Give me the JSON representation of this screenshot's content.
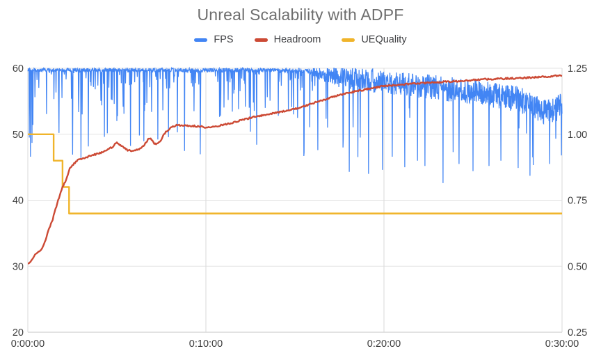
{
  "chart_data": {
    "type": "line",
    "title": "Unreal Scalability with ADPF",
    "legend_position": "top",
    "grid": true,
    "x_axis": {
      "ticks": [
        "0:00:00",
        "0:10:00",
        "0:20:00",
        "0:30:00"
      ],
      "tick_seconds": [
        0,
        600,
        1200,
        1800
      ],
      "range_seconds": [
        0,
        1800
      ]
    },
    "y_axis_left": {
      "ticks": [
        "60",
        "50",
        "40",
        "30",
        "20"
      ],
      "tick_values": [
        60,
        50,
        40,
        30,
        20
      ],
      "range": [
        20,
        60
      ],
      "series": [
        "FPS"
      ]
    },
    "y_axis_right": {
      "ticks": [
        "1.25",
        "1.00",
        "0.75",
        "0.50",
        "0.25"
      ],
      "tick_values": [
        1.25,
        1.0,
        0.75,
        0.5,
        0.25
      ],
      "range": [
        0.25,
        1.25
      ],
      "series": [
        "Headroom",
        "UEQuality"
      ]
    },
    "series": [
      {
        "name": "FPS",
        "axis": "left",
        "color": "#4285f4",
        "style": "noisy-line",
        "units": "frames per second, sampled every second, capped at 60",
        "cap": 60,
        "floor": 42,
        "mean_keypoints": [
          [
            0,
            59.75
          ],
          [
            900,
            59.7
          ],
          [
            960,
            59.5
          ],
          [
            1000,
            59.0
          ],
          [
            1060,
            58.6
          ],
          [
            1140,
            58.2
          ],
          [
            1250,
            57.7
          ],
          [
            1350,
            57.2
          ],
          [
            1450,
            56.7
          ],
          [
            1550,
            56.1
          ],
          [
            1650,
            55.3
          ],
          [
            1700,
            54.5
          ],
          [
            1735,
            53.6
          ],
          [
            1760,
            53.2
          ],
          [
            1780,
            53.9
          ],
          [
            1800,
            54.3
          ]
        ],
        "jitter_keypoints": [
          [
            0,
            0.28
          ],
          [
            940,
            0.35
          ],
          [
            975,
            0.8
          ],
          [
            1020,
            1.4
          ],
          [
            1100,
            1.8
          ],
          [
            1800,
            2.0
          ]
        ],
        "spikes": {
          "seed": 77130,
          "phase_a_end": 980,
          "phase_a": {
            "small": [
              0.09,
              0.4,
              3.0
            ],
            "medium": [
              0.045,
              3.0,
              7.0
            ],
            "large": [
              0.012,
              7.0,
              13.5
            ]
          },
          "phase_b": {
            "deep": [
              0.02,
              4.0,
              11.0
            ]
          }
        },
        "notable_dips": [
          [
            5,
            49.5
          ],
          [
            9,
            46.6
          ],
          [
            14,
            48.7
          ],
          [
            105,
            50.2
          ],
          [
            150,
            52.5
          ],
          [
            258,
            49.6
          ],
          [
            300,
            52.0
          ],
          [
            438,
            49.2
          ],
          [
            504,
            50.3
          ],
          [
            560,
            53.5
          ],
          [
            650,
            52.8
          ],
          [
            710,
            53.8
          ],
          [
            750,
            50.4
          ],
          [
            844,
            52.8
          ],
          [
            895,
            53.0
          ],
          [
            930,
            46.7
          ],
          [
            977,
            47.6
          ],
          [
            1010,
            51.0
          ],
          [
            1062,
            48.0
          ],
          [
            1083,
            44.3
          ],
          [
            1120,
            49.5
          ],
          [
            1148,
            44.0
          ],
          [
            1195,
            44.6
          ],
          [
            1228,
            46.6
          ],
          [
            1270,
            45.0
          ],
          [
            1313,
            46.0
          ],
          [
            1338,
            45.2
          ],
          [
            1399,
            42.6
          ],
          [
            1453,
            45.5
          ],
          [
            1500,
            44.4
          ],
          [
            1554,
            45.2
          ],
          [
            1594,
            46.0
          ],
          [
            1652,
            44.9
          ],
          [
            1692,
            43.7
          ],
          [
            1758,
            45.5
          ]
        ]
      },
      {
        "name": "Headroom",
        "axis": "right",
        "color": "#cc4a35",
        "style": "line",
        "units": "performance headroom ratio (right axis), seconds vs value",
        "noise": 0.006,
        "noise_seed": 991,
        "keypoints": [
          [
            0,
            0.51
          ],
          [
            12,
            0.52
          ],
          [
            25,
            0.545
          ],
          [
            47,
            0.565
          ],
          [
            60,
            0.6
          ],
          [
            70,
            0.64
          ],
          [
            82,
            0.67
          ],
          [
            94,
            0.72
          ],
          [
            105,
            0.76
          ],
          [
            117,
            0.8
          ],
          [
            130,
            0.83
          ],
          [
            141,
            0.87
          ],
          [
            165,
            0.9
          ],
          [
            190,
            0.91
          ],
          [
            215,
            0.92
          ],
          [
            240,
            0.928
          ],
          [
            260,
            0.936
          ],
          [
            282,
            0.95
          ],
          [
            300,
            0.968
          ],
          [
            318,
            0.953
          ],
          [
            336,
            0.94
          ],
          [
            360,
            0.937
          ],
          [
            385,
            0.95
          ],
          [
            410,
            0.987
          ],
          [
            428,
            0.963
          ],
          [
            443,
            0.968
          ],
          [
            458,
            0.998
          ],
          [
            470,
            1.015
          ],
          [
            490,
            1.03
          ],
          [
            505,
            1.035
          ],
          [
            540,
            1.032
          ],
          [
            578,
            1.03
          ],
          [
            600,
            1.026
          ],
          [
            637,
            1.03
          ],
          [
            680,
            1.041
          ],
          [
            727,
            1.056
          ],
          [
            773,
            1.068
          ],
          [
            820,
            1.078
          ],
          [
            867,
            1.088
          ],
          [
            915,
            1.1
          ],
          [
            961,
            1.118
          ],
          [
            1010,
            1.135
          ],
          [
            1055,
            1.15
          ],
          [
            1100,
            1.162
          ],
          [
            1150,
            1.172
          ],
          [
            1195,
            1.182
          ],
          [
            1315,
            1.193
          ],
          [
            1430,
            1.2
          ],
          [
            1550,
            1.209
          ],
          [
            1665,
            1.213
          ],
          [
            1740,
            1.218
          ],
          [
            1800,
            1.223
          ]
        ]
      },
      {
        "name": "UEQuality",
        "axis": "right",
        "color": "#f0b42a",
        "style": "step",
        "units": "Unreal Engine scalability quality level (right axis), seconds vs value",
        "steps": [
          [
            0,
            1.0
          ],
          [
            87,
            0.9
          ],
          [
            117,
            0.8
          ],
          [
            139,
            0.7
          ],
          [
            1800,
            0.7
          ]
        ]
      }
    ],
    "colors": {
      "title_text": "#6e6e6e",
      "axis_text": "#3c3c3c",
      "gridline_h": "#e3e3e3",
      "gridline_v": "#d9d9d9",
      "baseline": "#c4c4c4"
    }
  }
}
